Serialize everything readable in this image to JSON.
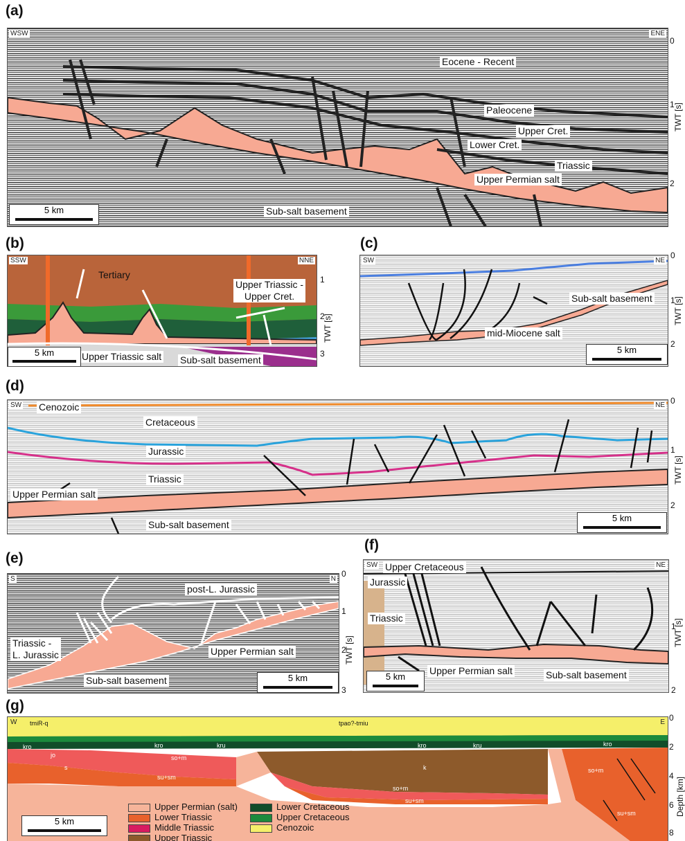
{
  "figure": {
    "panel_letters": [
      "(a)",
      "(b)",
      "(c)",
      "(d)",
      "(e)",
      "(f)",
      "(g)"
    ],
    "axis_label_twt": "TWT [s]",
    "axis_label_depth": "Depth [km]",
    "scale_bar_label": "5 km"
  },
  "panel_a": {
    "dir_left": "WSW",
    "dir_right": "ENE",
    "ticks": [
      "0",
      "1",
      "2"
    ],
    "labels": {
      "eocene": "Eocene - Recent",
      "paleocene": "Paleocene",
      "upper_cret": "Upper Cret.",
      "lower_cret": "Lower Cret.",
      "triassic": "Triassic",
      "salt": "Upper Permian salt",
      "basement": "Sub-salt basement"
    }
  },
  "panel_b": {
    "dir_left": "SSW",
    "dir_right": "NNE",
    "ticks": [
      "1",
      "2",
      "3"
    ],
    "labels": {
      "tertiary": "Tertiary",
      "utri_ucret": "Upper Triassic -\nUpper Cret.",
      "salt": "Upper Triassic salt",
      "basement": "Sub-salt basement"
    }
  },
  "panel_c": {
    "dir_left": "SW",
    "dir_right": "NE",
    "ticks": [
      "0",
      "1",
      "2"
    ],
    "labels": {
      "basement": "Sub-salt basement",
      "salt": "mid-Miocene salt"
    }
  },
  "panel_d": {
    "dir_left": "SW",
    "dir_right": "NE",
    "ticks": [
      "0",
      "1",
      "2"
    ],
    "labels": {
      "cenozoic": "Cenozoic",
      "cretaceous": "Cretaceous",
      "jurassic": "Jurassic",
      "triassic": "Triassic",
      "salt": "Upper Permian salt",
      "basement": "Sub-salt basement"
    }
  },
  "panel_e": {
    "dir_left": "S",
    "dir_right": "N",
    "ticks": [
      "0",
      "1",
      "2",
      "3"
    ],
    "labels": {
      "postlj": "post-L. Jurassic",
      "tri_lj": "Triassic -\nL. Jurassic",
      "salt": "Upper Permian salt",
      "basement": "Sub-salt basement"
    }
  },
  "panel_f": {
    "dir_left": "SW",
    "dir_right": "NE",
    "ticks": [
      "1",
      "2"
    ],
    "labels": {
      "ucret": "Upper Cretaceous",
      "jurassic": "Jurassic",
      "triassic": "Triassic",
      "salt": "Upper Permian salt",
      "basement": "Sub-salt basement"
    }
  },
  "panel_g": {
    "dir_left": "W",
    "dir_right": "E",
    "ticks": [
      "0",
      "2",
      "4",
      "6",
      "8"
    ],
    "unit_codes": {
      "tmiR_q": "tmiR-q",
      "tpao": "tpao?-tmiu",
      "kro": "kro",
      "kru": "kru",
      "jo": "jo",
      "s": "s",
      "so_m": "so+m",
      "su_sm": "su+sm",
      "k": "k"
    },
    "legend": [
      {
        "label": "Upper Permian (salt)",
        "color": "#f6b49a"
      },
      {
        "label": "Lower Triassic",
        "color": "#e8612c"
      },
      {
        "label": "Middle Triassic",
        "color": "#d81b60"
      },
      {
        "label": "Upper Triassic",
        "color": "#8d5a2b"
      },
      {
        "label": "Lower Cretaceous",
        "color": "#114d2a"
      },
      {
        "label": "Upper Cretaceous",
        "color": "#1c8a3c"
      },
      {
        "label": "Cenozoic",
        "color": "#f5ef6a"
      }
    ]
  },
  "colors": {
    "salt": "#f7a993",
    "fault": "#222222",
    "horizon_blue": "#29a3dc",
    "horizon_magenta": "#d6308a",
    "horizon_orange": "#f08a2a"
  }
}
